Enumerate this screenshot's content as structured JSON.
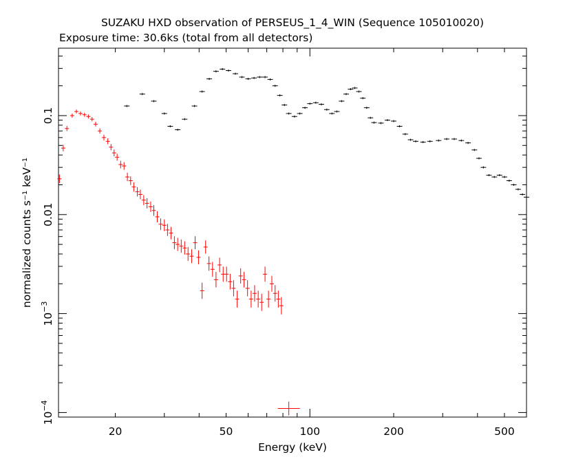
{
  "chart_data": {
    "type": "scatter",
    "title": "SUZAKU HXD observation of PERSEUS_1_4_WIN (Sequence 105010020)",
    "subtitle": "Exposure time: 30.6ks (total from all detectors)",
    "xlabel": "Energy (keV)",
    "ylabel": "normalized counts s⁻¹ keV⁻¹",
    "xscale": "log",
    "yscale": "log",
    "xlim": [
      12.5,
      600
    ],
    "ylim": [
      9e-05,
      0.48
    ],
    "grid": false,
    "x_ticks": [
      {
        "value": 20,
        "label": "20"
      },
      {
        "value": 50,
        "label": "50"
      },
      {
        "value": 100,
        "label": "100"
      },
      {
        "value": 200,
        "label": "200"
      },
      {
        "value": 500,
        "label": "500"
      }
    ],
    "y_ticks": [
      {
        "value": 0.1,
        "label": "0.1"
      },
      {
        "value": 0.01,
        "label": "0.01"
      },
      {
        "value": 0.001,
        "label_base": "10",
        "label_exp": "−3"
      },
      {
        "value": 0.0001,
        "label_base": "10",
        "label_exp": "−4"
      }
    ],
    "series": [
      {
        "color": "#ff0000",
        "points": [
          [
            12.6,
            0.023
          ],
          [
            13.0,
            0.047
          ],
          [
            13.4,
            0.074
          ],
          [
            14.0,
            0.1
          ],
          [
            14.5,
            0.11
          ],
          [
            15.0,
            0.105
          ],
          [
            15.5,
            0.102
          ],
          [
            16.0,
            0.098
          ],
          [
            16.5,
            0.092
          ],
          [
            17.0,
            0.082
          ],
          [
            17.6,
            0.07
          ],
          [
            18.2,
            0.06
          ],
          [
            18.8,
            0.055
          ],
          [
            19.3,
            0.048
          ],
          [
            19.8,
            0.042
          ],
          [
            20.3,
            0.038
          ],
          [
            20.9,
            0.032
          ],
          [
            21.5,
            0.031
          ],
          [
            22.1,
            0.024
          ],
          [
            22.7,
            0.022
          ],
          [
            23.3,
            0.019
          ],
          [
            24.0,
            0.017
          ],
          [
            24.6,
            0.016
          ],
          [
            25.3,
            0.014
          ],
          [
            26.0,
            0.013
          ],
          [
            26.8,
            0.012
          ],
          [
            27.5,
            0.011
          ],
          [
            28.3,
            0.0095
          ],
          [
            29.1,
            0.008
          ],
          [
            30.0,
            0.0078
          ],
          [
            30.8,
            0.007
          ],
          [
            31.7,
            0.0065
          ],
          [
            32.6,
            0.0052
          ],
          [
            33.5,
            0.005
          ],
          [
            34.5,
            0.0048
          ],
          [
            35.5,
            0.0046
          ],
          [
            36.5,
            0.004
          ],
          [
            37.6,
            0.0038
          ],
          [
            38.7,
            0.0052
          ],
          [
            39.8,
            0.0037
          ],
          [
            41.0,
            0.0017
          ],
          [
            42.2,
            0.0047
          ],
          [
            43.4,
            0.0032
          ],
          [
            44.7,
            0.0028
          ],
          [
            46.0,
            0.0022
          ],
          [
            47.4,
            0.0031
          ],
          [
            48.8,
            0.0025
          ],
          [
            50.2,
            0.0025
          ],
          [
            51.7,
            0.0021
          ],
          [
            53.2,
            0.0018
          ],
          [
            54.8,
            0.0014
          ],
          [
            56.4,
            0.0024
          ],
          [
            58.0,
            0.0022
          ],
          [
            59.7,
            0.0018
          ],
          [
            61.5,
            0.0014
          ],
          [
            63.3,
            0.0016
          ],
          [
            65.2,
            0.0014
          ],
          [
            67.1,
            0.0013
          ],
          [
            69.0,
            0.0025
          ],
          [
            71.0,
            0.0014
          ],
          [
            73.0,
            0.002
          ],
          [
            75.0,
            0.0016
          ],
          [
            77.0,
            0.0014
          ],
          [
            79.0,
            0.0012
          ],
          [
            84.0,
            0.00011
          ]
        ]
      },
      {
        "color": "#000000",
        "points": [
          [
            22.0,
            0.125
          ],
          [
            25.0,
            0.165
          ],
          [
            27.5,
            0.14
          ],
          [
            30.0,
            0.105
          ],
          [
            31.5,
            0.078
          ],
          [
            33.5,
            0.072
          ],
          [
            35.5,
            0.092
          ],
          [
            38.5,
            0.125
          ],
          [
            41.0,
            0.175
          ],
          [
            43.5,
            0.235
          ],
          [
            46.0,
            0.28
          ],
          [
            48.5,
            0.295
          ],
          [
            51.0,
            0.285
          ],
          [
            54.0,
            0.265
          ],
          [
            57.0,
            0.245
          ],
          [
            60.0,
            0.235
          ],
          [
            63.0,
            0.24
          ],
          [
            66.0,
            0.245
          ],
          [
            69.0,
            0.245
          ],
          [
            72.0,
            0.232
          ],
          [
            75.0,
            0.2
          ],
          [
            78.0,
            0.16
          ],
          [
            81.0,
            0.128
          ],
          [
            84.0,
            0.105
          ],
          [
            88.0,
            0.098
          ],
          [
            92.0,
            0.105
          ],
          [
            96.0,
            0.12
          ],
          [
            100.0,
            0.132
          ],
          [
            105.0,
            0.135
          ],
          [
            110.0,
            0.13
          ],
          [
            115.0,
            0.115
          ],
          [
            120.0,
            0.105
          ],
          [
            125.0,
            0.11
          ],
          [
            130.0,
            0.14
          ],
          [
            135.0,
            0.165
          ],
          [
            140.0,
            0.185
          ],
          [
            145.0,
            0.19
          ],
          [
            150.0,
            0.175
          ],
          [
            155.0,
            0.15
          ],
          [
            160.0,
            0.12
          ],
          [
            165.0,
            0.095
          ],
          [
            170.0,
            0.085
          ],
          [
            180.0,
            0.084
          ],
          [
            190.0,
            0.09
          ],
          [
            200.0,
            0.088
          ],
          [
            210.0,
            0.078
          ],
          [
            220.0,
            0.065
          ],
          [
            230.0,
            0.057
          ],
          [
            240.0,
            0.055
          ],
          [
            255.0,
            0.054
          ],
          [
            270.0,
            0.055
          ],
          [
            290.0,
            0.056
          ],
          [
            310.0,
            0.058
          ],
          [
            330.0,
            0.058
          ],
          [
            350.0,
            0.056
          ],
          [
            370.0,
            0.053
          ],
          [
            390.0,
            0.045
          ],
          [
            405.0,
            0.037
          ],
          [
            420.0,
            0.03
          ],
          [
            440.0,
            0.025
          ],
          [
            460.0,
            0.024
          ],
          [
            480.0,
            0.025
          ],
          [
            500.0,
            0.024
          ],
          [
            520.0,
            0.022
          ],
          [
            540.0,
            0.02
          ],
          [
            560.0,
            0.018
          ],
          [
            580.0,
            0.016
          ],
          [
            600.0,
            0.015
          ]
        ]
      }
    ]
  }
}
